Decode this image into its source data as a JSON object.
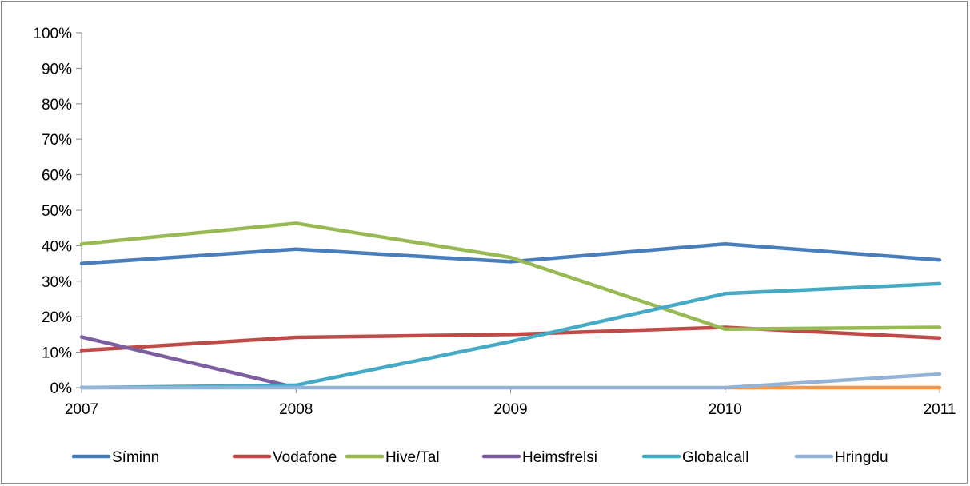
{
  "chart_data": {
    "type": "line",
    "title": "",
    "xlabel": "",
    "ylabel": "",
    "x": [
      "2007",
      "2008",
      "2009",
      "2010",
      "2011"
    ],
    "y_ticks": [
      "0%",
      "10%",
      "20%",
      "30%",
      "40%",
      "50%",
      "60%",
      "70%",
      "80%",
      "90%",
      "100%"
    ],
    "ylim": [
      0,
      100
    ],
    "y_unit": "percent",
    "grid": false,
    "legend_position": "bottom",
    "series": [
      {
        "name": "Síminn",
        "color": "#4a7ebb",
        "values": [
          35,
          39,
          35.5,
          40.5,
          36
        ]
      },
      {
        "name": "Vodafone",
        "color": "#be4b48",
        "values": [
          10.5,
          14.2,
          15,
          17,
          14
        ]
      },
      {
        "name": "Hive/Tal",
        "color": "#98b954",
        "values": [
          40.5,
          46.3,
          36.7,
          16.5,
          17
        ]
      },
      {
        "name": "Heimsfrelsi",
        "color": "#7d5fa0",
        "values": [
          14.3,
          0,
          null,
          null,
          null
        ]
      },
      {
        "name": "Globalcall",
        "color": "#46aac5",
        "values": [
          0,
          0.7,
          13,
          26.5,
          29.3
        ]
      },
      {
        "name": "Hringdu",
        "color": "#95b3d7",
        "values": [
          0,
          0,
          0,
          0,
          3.8
        ]
      },
      {
        "name": "",
        "color": "#f79646",
        "legend": false,
        "values": [
          null,
          null,
          null,
          0,
          0
        ]
      }
    ]
  }
}
